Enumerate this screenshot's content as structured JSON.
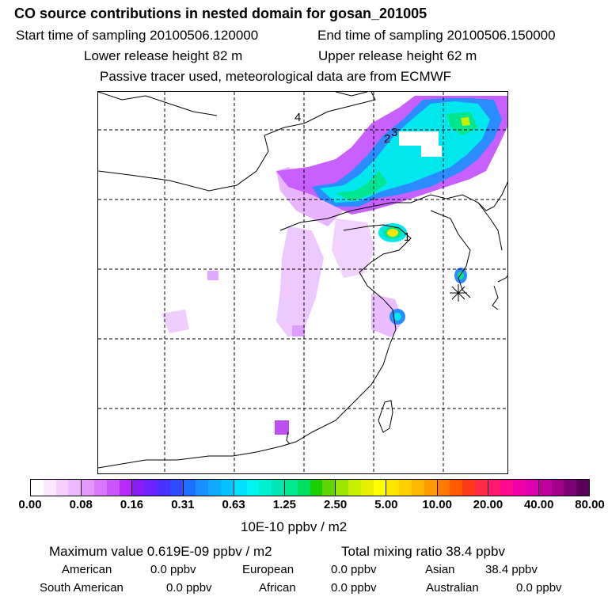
{
  "header": {
    "title": "CO  source contributions in nested domain for gosan_201005",
    "start_time": "Start time of sampling 20100506.120000",
    "end_time": "End time of sampling 20100506.150000",
    "lower_release": "Lower release height   82 m",
    "upper_release": "Upper release height   62 m",
    "note": "Passive tracer used, meteorological data are from ECMWF"
  },
  "map": {
    "release_labels": [
      "4",
      "2",
      "3",
      "1"
    ],
    "receptor_symbol": "gosan-station-marker"
  },
  "legend": {
    "ticks": [
      "0.00",
      "0.08",
      "0.16",
      "0.31",
      "0.63",
      "1.25",
      "2.50",
      "5.00",
      "10.00",
      "20.00",
      "40.00",
      "80.00"
    ],
    "units": "10E-10 ppbv / m2",
    "segments": [
      [
        "#ffffff",
        "#fbe8ff",
        "#f5d0ff",
        "#eeb8ff"
      ],
      [
        "#e498ff",
        "#d978ff",
        "#ca55ff",
        "#b82af5"
      ],
      [
        "#8a1ef0",
        "#6a24ff",
        "#4a30ff",
        "#2f4dff"
      ],
      [
        "#1c6fff",
        "#1a8fff",
        "#11aaff",
        "#00c4ff"
      ],
      [
        "#00e0ff",
        "#00f5f0",
        "#00f0d0",
        "#00e6b2"
      ],
      [
        "#00e890",
        "#00e060",
        "#1ad000",
        "#60d800"
      ],
      [
        "#9ae600",
        "#c8ee00",
        "#e8f000",
        "#ffff00"
      ],
      [
        "#ffe600",
        "#ffd000",
        "#ffb800",
        "#ff9a00"
      ],
      [
        "#ff7a00",
        "#ff5a00",
        "#ff3a1a",
        "#ff2a44"
      ],
      [
        "#ff1a70",
        "#ff0a90",
        "#f200a8",
        "#dc00b0"
      ],
      [
        "#c0009c",
        "#a0008a",
        "#7e0076",
        "#5a005a"
      ]
    ]
  },
  "summary": {
    "max_value": "Maximum value  0.619E-09 ppbv / m2",
    "total_mixing": "Total mixing ratio       38.4 ppbv",
    "american_label": "American",
    "american_value": "0.0 ppbv",
    "european_label": "European",
    "european_value": "0.0 ppbv",
    "asian_label": "Asian",
    "asian_value": "38.4 ppbv",
    "south_american_label": "South American",
    "south_american_value": "0.0 ppbv",
    "african_label": "African",
    "african_value": "0.0 ppbv",
    "australian_label": "Australian",
    "australian_value": "0.0 ppbv"
  }
}
